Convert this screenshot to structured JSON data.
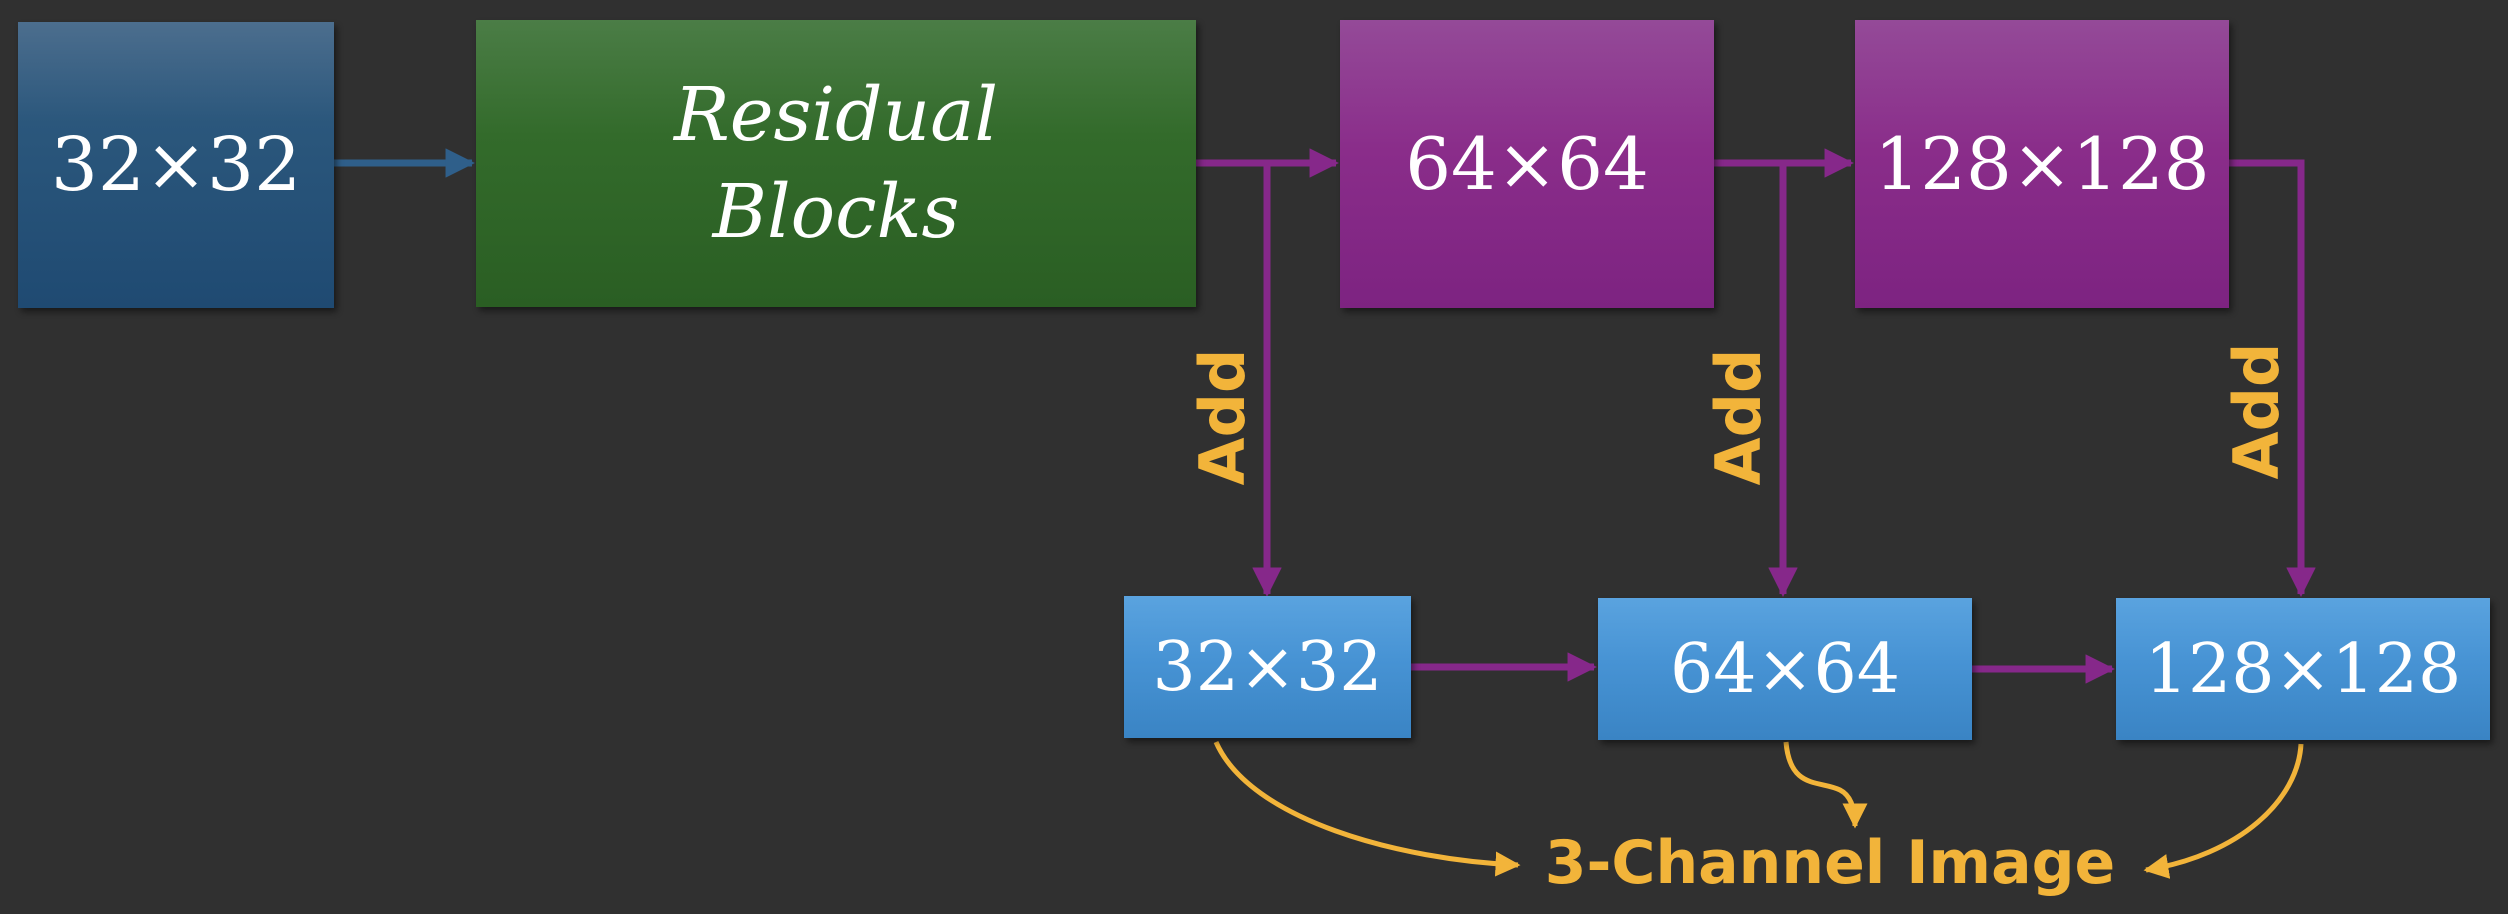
{
  "diagram": {
    "nodes": {
      "input": {
        "label": "32×32"
      },
      "residual": {
        "line1": "Residual",
        "line2": "Blocks"
      },
      "upsample_64": {
        "label": "64×64"
      },
      "upsample_128": {
        "label": "128×128"
      },
      "output_32": {
        "label": "32×32"
      },
      "output_64": {
        "label": "64×64"
      },
      "output_128": {
        "label": "128×128"
      }
    },
    "edge_labels": {
      "add_1": "Add",
      "add_2": "Add",
      "add_3": "Add"
    },
    "output_label": "3-Channel Image"
  },
  "colors": {
    "background": "#303030",
    "input_box": "#255179",
    "residual_box": "#2f6528",
    "purple_box": "#86288a",
    "blue_box": "#4590d0",
    "arrow_blue": "#2f5f8a",
    "arrow_purple": "#86288a",
    "accent_orange": "#f2b43a"
  }
}
